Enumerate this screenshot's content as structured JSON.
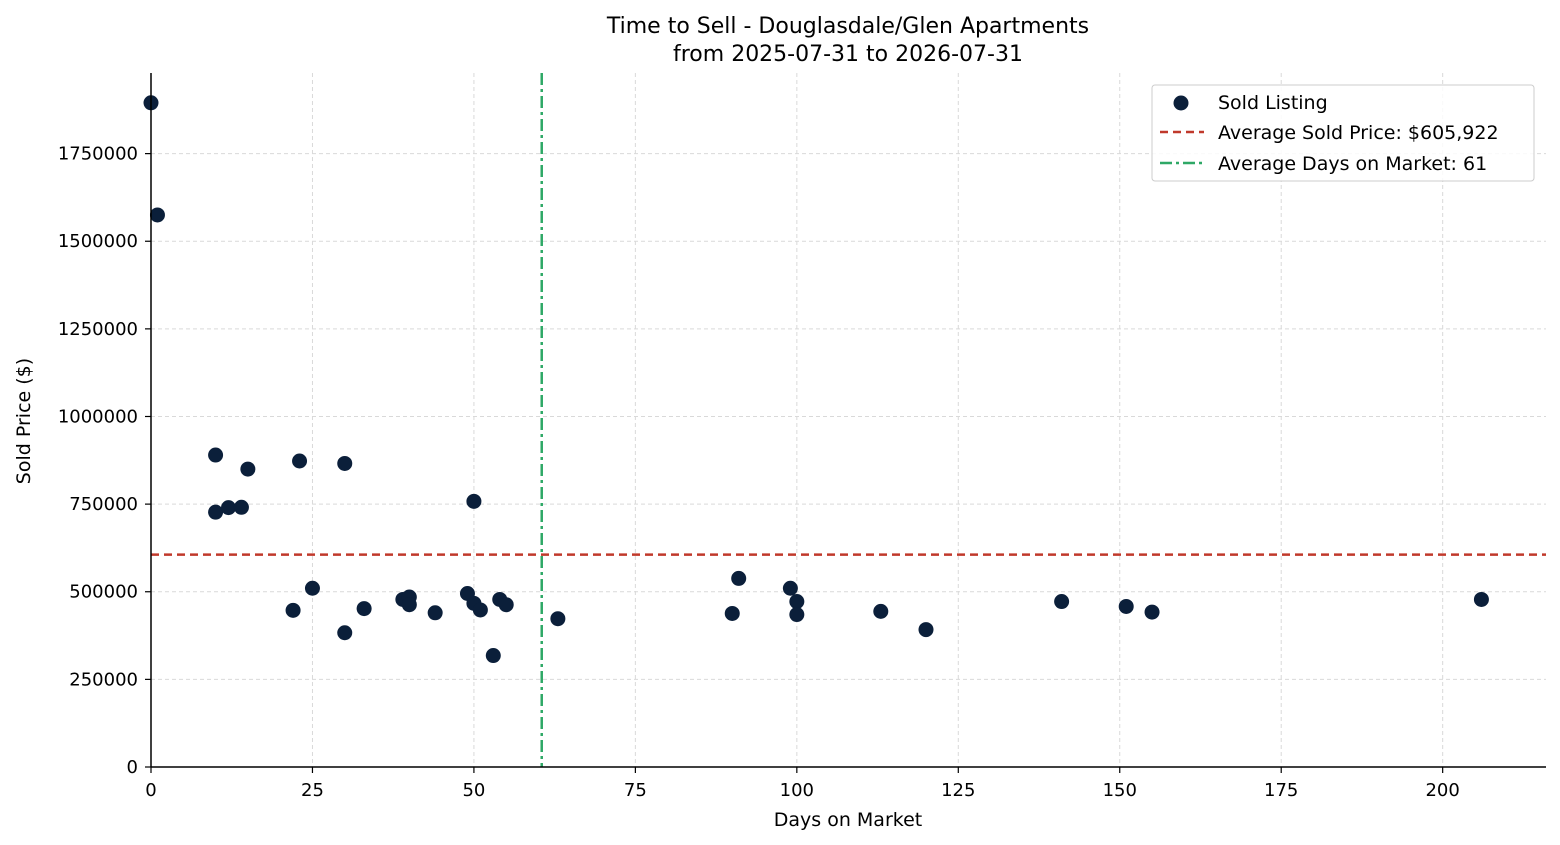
{
  "chart_data": {
    "type": "scatter",
    "title": "Time to Sell - Douglasdale/Glen Apartments",
    "subtitle": "from 2025-07-31 to 2026-07-31",
    "xlabel": "Days on Market",
    "ylabel": "Sold Price ($)",
    "xlim": [
      0,
      216
    ],
    "ylim": [
      0,
      1980000
    ],
    "x_ticks": [
      0,
      25,
      50,
      75,
      100,
      125,
      150,
      175,
      200
    ],
    "y_ticks": [
      0,
      250000,
      500000,
      750000,
      1000000,
      1250000,
      1500000,
      1750000
    ],
    "grid": true,
    "legend_position": "top-right",
    "colors": {
      "points": "#0b1f3a",
      "avg_price_line": "#c0392b",
      "avg_days_line": "#2ea866"
    },
    "series": [
      {
        "name": "Sold Listing",
        "points": [
          {
            "x": 0,
            "y": 1895000
          },
          {
            "x": 1,
            "y": 1575000
          },
          {
            "x": 10,
            "y": 890000
          },
          {
            "x": 10,
            "y": 727000
          },
          {
            "x": 12,
            "y": 740000
          },
          {
            "x": 14,
            "y": 741000
          },
          {
            "x": 15,
            "y": 850000
          },
          {
            "x": 22,
            "y": 447000
          },
          {
            "x": 23,
            "y": 873000
          },
          {
            "x": 25,
            "y": 510000
          },
          {
            "x": 30,
            "y": 866000
          },
          {
            "x": 30,
            "y": 383000
          },
          {
            "x": 33,
            "y": 452000
          },
          {
            "x": 39,
            "y": 478000
          },
          {
            "x": 40,
            "y": 485000
          },
          {
            "x": 40,
            "y": 463000
          },
          {
            "x": 44,
            "y": 440000
          },
          {
            "x": 49,
            "y": 495000
          },
          {
            "x": 50,
            "y": 758000
          },
          {
            "x": 50,
            "y": 467000
          },
          {
            "x": 51,
            "y": 448000
          },
          {
            "x": 53,
            "y": 318000
          },
          {
            "x": 54,
            "y": 478000
          },
          {
            "x": 55,
            "y": 463000
          },
          {
            "x": 63,
            "y": 423000
          },
          {
            "x": 90,
            "y": 438000
          },
          {
            "x": 91,
            "y": 538000
          },
          {
            "x": 99,
            "y": 510000
          },
          {
            "x": 100,
            "y": 472000
          },
          {
            "x": 100,
            "y": 435000
          },
          {
            "x": 113,
            "y": 444000
          },
          {
            "x": 120,
            "y": 392000
          },
          {
            "x": 141,
            "y": 472000
          },
          {
            "x": 151,
            "y": 458000
          },
          {
            "x": 155,
            "y": 442000
          },
          {
            "x": 206,
            "y": 478000
          }
        ]
      }
    ],
    "reference_lines": {
      "avg_price": {
        "name": "Average Sold Price: $605,922",
        "value": 605922
      },
      "avg_days": {
        "name": "Average Days on Market: 61",
        "value": 60.5
      }
    }
  }
}
